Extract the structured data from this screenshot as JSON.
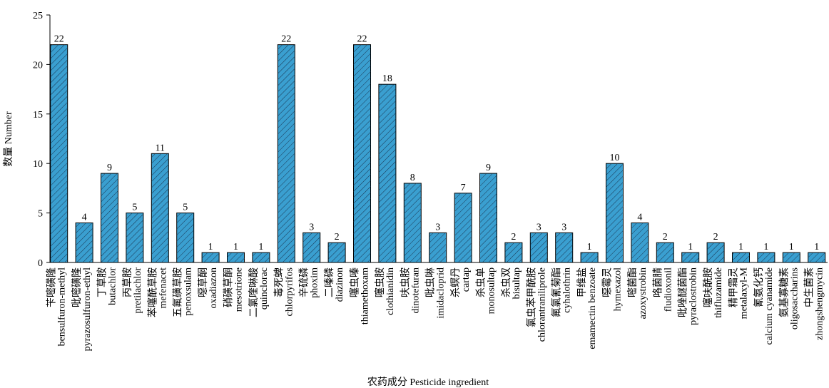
{
  "chart_data": {
    "type": "bar",
    "y_label": "数量 Number",
    "x_label": "农药成分 Pesticide ingredient",
    "categories": [
      [
        "苄嘧磺隆",
        "bensulfuron-methyl"
      ],
      [
        "吡嘧磺隆",
        "pyrazosulfuron-ethyl"
      ],
      [
        "丁草胺",
        "butachlor"
      ],
      [
        "丙草胺",
        "pretilachlor"
      ],
      [
        "苯噻酰草胺",
        "mefenacet"
      ],
      [
        "五氟磺草胺",
        "penoxsulam"
      ],
      [
        "噁草酮",
        "oxadiazon"
      ],
      [
        "硝磺草酮",
        "mesotrione"
      ],
      [
        "二氯喹啉酸",
        "quinclorac"
      ],
      [
        "毒死蜱",
        "chlorpyrifos"
      ],
      [
        "辛硫磷",
        "phoxim"
      ],
      [
        "二嗪磷",
        "diazinon"
      ],
      [
        "噻虫嗪",
        "thiamethoxam"
      ],
      [
        "噻虫胺",
        "clothianidin"
      ],
      [
        "呋虫胺",
        "dinotefuran"
      ],
      [
        "吡虫啉",
        "imidacloprid"
      ],
      [
        "杀螟丹",
        "cartap"
      ],
      [
        "杀虫单",
        "monosultap"
      ],
      [
        "杀虫双",
        "bisultap"
      ],
      [
        "氯虫苯甲酰胺",
        "chlorantraniliprole"
      ],
      [
        "氟氯氰菊酯",
        "cyhalothrin"
      ],
      [
        "甲维盐",
        "emamectin benzoate"
      ],
      [
        "噁霉灵",
        "hymexazol"
      ],
      [
        "嘧菌酯",
        "azoxystrobin"
      ],
      [
        "咯菌腈",
        "fludioxonil"
      ],
      [
        "吡唑醚菌酯",
        "pyraclostrobin"
      ],
      [
        "噻呋酰胺",
        "thifluzamide"
      ],
      [
        "精甲霜灵",
        "metalaxyl-M"
      ],
      [
        "氰氨化钙",
        "calcium cyanamide"
      ],
      [
        "氨基寡糖素",
        "oligosaccharins"
      ],
      [
        "中生菌素",
        "zhongshengmycin"
      ]
    ],
    "values": [
      22,
      4,
      9,
      5,
      11,
      5,
      1,
      1,
      1,
      22,
      3,
      2,
      22,
      18,
      8,
      3,
      7,
      9,
      2,
      3,
      3,
      1,
      10,
      4,
      2,
      1,
      2,
      1,
      1,
      1,
      1
    ],
    "color": "#3a9fd0",
    "hatch": true,
    "ylim": [
      0,
      25
    ],
    "yticks": [
      0,
      5,
      10,
      15,
      20,
      25
    ],
    "grid": false
  }
}
